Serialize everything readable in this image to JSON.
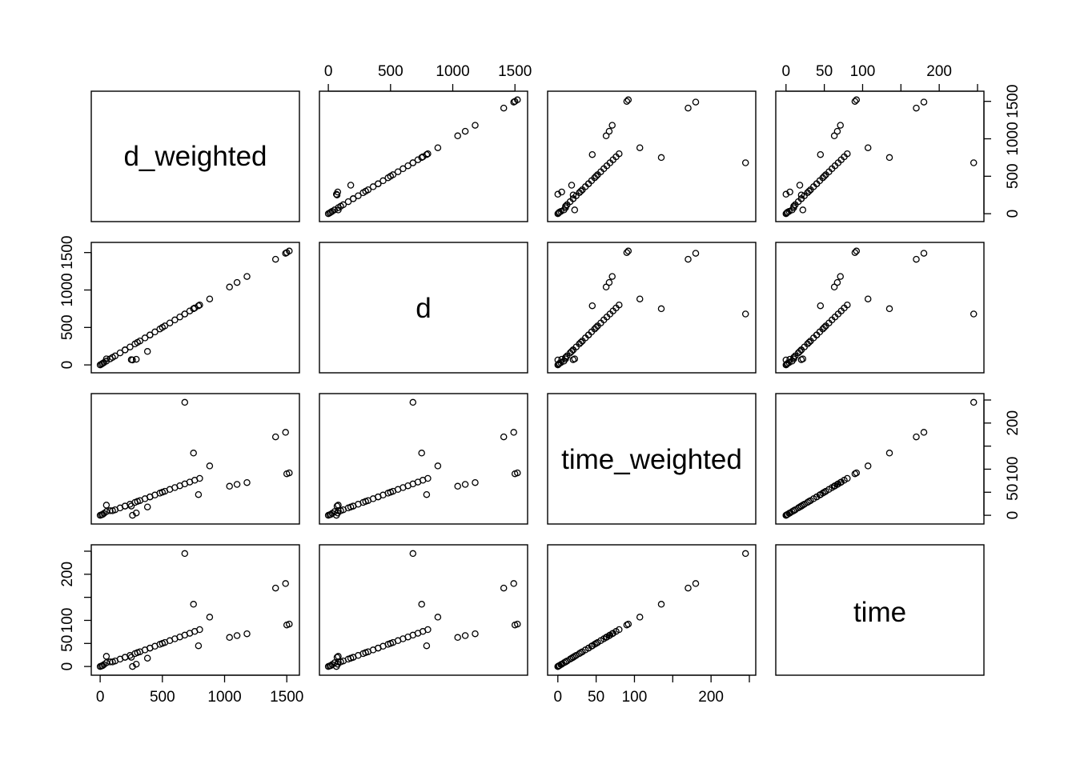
{
  "chart_data": {
    "type": "scatter",
    "subtype": "pairs",
    "variables": [
      "d_weighted",
      "d",
      "time_weighted",
      "time"
    ],
    "axes": {
      "d_weighted": {
        "ticks": [
          0,
          500,
          1000,
          1500
        ],
        "tick_labels": [
          "0",
          "500",
          "1000",
          "1500"
        ],
        "range": [
          -20,
          1550
        ]
      },
      "d": {
        "ticks": [
          0,
          500,
          1000,
          1500
        ],
        "tick_labels": [
          "0",
          "500",
          "1000",
          "1500"
        ],
        "range": [
          -20,
          1550
        ]
      },
      "time_weighted": {
        "ticks": [
          0,
          50,
          100,
          200
        ],
        "minor_ticks": [
          150,
          250
        ],
        "tick_labels": [
          "0",
          "50",
          "100",
          "200"
        ],
        "range": [
          -5,
          250
        ]
      },
      "time": {
        "ticks": [
          0,
          50,
          100,
          200
        ],
        "minor_ticks": [
          150,
          250
        ],
        "tick_labels": [
          "0",
          "50",
          "100",
          "200"
        ],
        "range": [
          -5,
          250
        ]
      }
    },
    "observations": {
      "d_weighted": [
        0,
        10,
        20,
        30,
        50,
        80,
        120,
        160,
        200,
        240,
        280,
        320,
        360,
        400,
        440,
        480,
        520,
        560,
        600,
        640,
        680,
        720,
        760,
        800,
        50,
        250,
        260,
        290,
        380,
        1040,
        1100,
        1180,
        1490,
        1500,
        680,
        750,
        790,
        880,
        1410,
        1520,
        300,
        400,
        500,
        100,
        200
      ],
      "d": [
        0,
        10,
        20,
        30,
        50,
        80,
        120,
        160,
        200,
        240,
        280,
        320,
        360,
        400,
        440,
        480,
        520,
        560,
        600,
        640,
        680,
        720,
        760,
        800,
        80,
        70,
        65,
        75,
        180,
        1040,
        1100,
        1180,
        1490,
        1500,
        680,
        750,
        790,
        880,
        1410,
        1520,
        300,
        400,
        500,
        100,
        200
      ],
      "time_weighted": [
        0,
        1,
        2,
        4,
        8,
        10,
        12,
        16,
        20,
        24,
        28,
        32,
        36,
        40,
        44,
        48,
        52,
        56,
        60,
        64,
        68,
        72,
        76,
        80,
        22,
        20,
        0,
        5,
        18,
        63,
        67,
        71,
        180,
        90,
        245,
        135,
        45,
        107,
        170,
        92,
        30,
        40,
        50,
        10,
        20
      ],
      "time": [
        0,
        1,
        2,
        4,
        8,
        10,
        12,
        16,
        20,
        24,
        28,
        32,
        36,
        40,
        44,
        48,
        52,
        56,
        60,
        64,
        68,
        72,
        76,
        80,
        22,
        20,
        0,
        5,
        18,
        63,
        67,
        71,
        180,
        90,
        245,
        135,
        45,
        107,
        170,
        92,
        30,
        40,
        50,
        10,
        20
      ]
    }
  }
}
